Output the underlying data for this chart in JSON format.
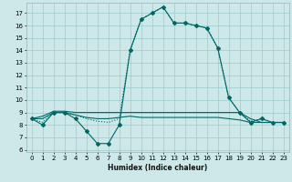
{
  "title": "",
  "xlabel": "Humidex (Indice chaleur)",
  "bg_color": "#cce8e8",
  "grid_color": "#99cccc",
  "line_color": "#006666",
  "xlim": [
    -0.5,
    23.5
  ],
  "ylim": [
    5.8,
    17.8
  ],
  "yticks": [
    6,
    7,
    8,
    9,
    10,
    11,
    12,
    13,
    14,
    15,
    16,
    17
  ],
  "xticks": [
    0,
    1,
    2,
    3,
    4,
    5,
    6,
    7,
    8,
    9,
    10,
    11,
    12,
    13,
    14,
    15,
    16,
    17,
    18,
    19,
    20,
    21,
    22,
    23
  ],
  "series": [
    {
      "x": [
        0,
        1,
        2,
        3,
        4,
        5,
        6,
        7,
        8,
        9,
        10,
        11,
        12,
        13,
        14,
        15,
        16,
        17,
        18,
        19,
        20,
        21,
        22,
        23
      ],
      "y": [
        8.5,
        8.0,
        9.0,
        9.0,
        8.5,
        7.5,
        6.5,
        6.5,
        8.0,
        14.0,
        16.5,
        17.0,
        17.5,
        16.2,
        16.2,
        16.0,
        15.8,
        14.2,
        10.2,
        9.0,
        8.2,
        8.5,
        8.2,
        8.2
      ],
      "marker": "D",
      "linestyle": "-",
      "linewidth": 0.8,
      "markersize": 2.0
    },
    {
      "x": [
        0,
        1,
        2,
        3,
        4,
        5,
        6,
        7,
        8,
        9,
        10,
        11,
        12,
        13,
        14,
        15,
        16,
        17,
        18,
        19,
        20,
        21,
        22,
        23
      ],
      "y": [
        8.5,
        8.7,
        9.1,
        9.1,
        9.0,
        9.0,
        9.0,
        9.0,
        9.0,
        9.0,
        9.0,
        9.0,
        9.0,
        9.0,
        9.0,
        9.0,
        9.0,
        9.0,
        9.0,
        9.0,
        8.5,
        8.2,
        8.2,
        8.2
      ],
      "marker": null,
      "linestyle": "-",
      "linewidth": 0.8,
      "markersize": 0
    },
    {
      "x": [
        0,
        1,
        2,
        3,
        4,
        5,
        6,
        7,
        8,
        9,
        10,
        11,
        12,
        13,
        14,
        15,
        16,
        17,
        18,
        19,
        20,
        21,
        22,
        23
      ],
      "y": [
        8.5,
        8.5,
        9.0,
        9.0,
        8.8,
        8.6,
        8.5,
        8.5,
        8.6,
        8.7,
        8.6,
        8.6,
        8.6,
        8.6,
        8.6,
        8.6,
        8.6,
        8.6,
        8.5,
        8.4,
        8.2,
        8.2,
        8.2,
        8.2
      ],
      "marker": null,
      "linestyle": "-",
      "linewidth": 0.8,
      "markersize": 0
    },
    {
      "x": [
        0,
        1,
        2,
        3,
        4,
        5,
        6,
        7,
        8,
        9,
        10,
        11,
        12,
        13,
        14,
        15,
        16,
        17,
        18,
        19,
        20,
        21,
        22,
        23
      ],
      "y": [
        8.5,
        8.2,
        9.0,
        9.0,
        8.8,
        8.5,
        8.3,
        8.2,
        8.5,
        14.0,
        16.5,
        17.0,
        17.5,
        16.2,
        16.2,
        16.0,
        15.8,
        14.2,
        10.2,
        9.0,
        8.3,
        8.5,
        8.2,
        8.2
      ],
      "marker": null,
      "linestyle": ":",
      "linewidth": 0.8,
      "markersize": 0
    }
  ]
}
